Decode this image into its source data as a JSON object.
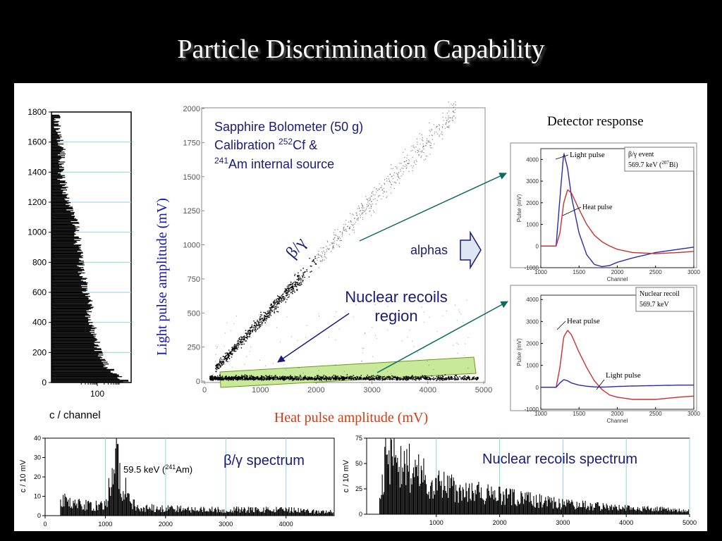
{
  "slide": {
    "title": "Particle Discrimination Capability"
  },
  "colors": {
    "background": "#000000",
    "panel": "#ffffff",
    "navy": "#1a1a7a",
    "axisRed": "#d43b0f",
    "arrow": "#0a6a60",
    "pulseBlue": "#2a2ab0",
    "pulseRed": "#c83030",
    "band": "#c8e89a"
  },
  "scatter": {
    "inner_title_line1": "Sapphire Bolometer (50 g)",
    "inner_title_line2_pre": "Calibration ",
    "inner_title_line2_sup": "252",
    "inner_title_line2_post": "Cf &",
    "inner_title_line3_sup": "241",
    "inner_title_line3_post": "Am internal source",
    "ylabel": "Light pulse amplitude (mV)",
    "xlabel": "Heat pulse amplitude (mV)",
    "beta_gamma_label": "β/γ",
    "alphas_label": "alphas",
    "nr_label_line1": "Nuclear recoils",
    "nr_label_line2": "region"
  },
  "left_hist": {
    "xlabel": "c / channel"
  },
  "bg_spectrum": {
    "ylabel": "c / 10 mV",
    "title": "β/γ spectrum",
    "annotation_pre": "59.5 keV (",
    "annotation_sup": "241",
    "annotation_post": "Am)"
  },
  "nr_spectrum": {
    "ylabel": "c / 10 mV",
    "title": "Nuclear recoils spectrum"
  },
  "detector_response": {
    "title": "Detector response",
    "top": {
      "light_label": "Light pulse",
      "heat_label": "Heat pulse",
      "box_line1": "β/γ event",
      "box_line2_pre": "569.7 keV (",
      "box_line2_sup": "207",
      "box_line2_post": "Bi)",
      "ylabel": "Pulse (mV)",
      "xlabel": "Channel"
    },
    "bottom": {
      "heat_label": "Heat pulse",
      "light_label": "Light pulse",
      "box_line1": "Nuclear recoil",
      "box_line2": "569.7 keV",
      "ylabel": "Pulse (mV)",
      "xlabel": "Channel"
    }
  },
  "chart_data": [
    {
      "type": "scatter",
      "name": "scatter",
      "xlim": [
        0,
        5000
      ],
      "ylim": [
        0,
        2000
      ],
      "xticks": [
        "0",
        "1000",
        "2000",
        "3000",
        "4000",
        "5000"
      ],
      "yticks": [
        "0",
        "250",
        "500",
        "750",
        "1000",
        "1250",
        "1500",
        "1750",
        "2000"
      ],
      "series": [
        {
          "name": "β/γ",
          "x_range": [
            200,
            4500
          ],
          "slope_y_per_x": 0.44
        },
        {
          "name": "nuclear recoils",
          "x_range": [
            100,
            4900
          ],
          "y_range": [
            0,
            80
          ]
        }
      ],
      "grid": false
    },
    {
      "type": "bar",
      "name": "left_hist",
      "orientation": "horizontal",
      "ylim": [
        0,
        1800
      ],
      "yticks": [
        "0",
        "200",
        "400",
        "600",
        "800",
        "1000",
        "1200",
        "1400",
        "1600",
        "1800"
      ],
      "xscale": "log",
      "xticks": [
        "100"
      ],
      "bins_y": [
        0,
        50,
        100,
        150,
        200,
        250,
        300,
        350,
        400,
        450,
        500,
        550,
        600,
        650,
        700,
        750,
        800,
        850,
        900,
        950,
        1000,
        1050,
        1100,
        1150,
        1200,
        1250,
        1300,
        1350,
        1400,
        1450,
        1500,
        1550,
        1600,
        1650,
        1700
      ],
      "counts": [
        2000,
        600,
        300,
        160,
        120,
        100,
        80,
        70,
        60,
        40,
        50,
        50,
        35,
        30,
        25,
        22,
        20,
        18,
        16,
        15,
        14,
        12,
        10,
        7,
        5,
        4,
        4,
        3,
        3,
        3,
        3,
        3,
        3,
        2,
        2
      ]
    },
    {
      "type": "bar",
      "name": "bg_spectrum",
      "xlim": [
        0,
        4800
      ],
      "ylim": [
        0,
        40
      ],
      "xticks": [
        "0",
        "1000",
        "2000",
        "3000",
        "4000"
      ],
      "yticks": [
        "0",
        "10",
        "20",
        "30",
        "40"
      ],
      "x": [
        250,
        500,
        750,
        1000,
        1190,
        1210,
        1500,
        2000,
        2500,
        3000,
        3500,
        4000,
        4500
      ],
      "values": [
        8,
        6,
        5,
        5,
        37,
        20,
        4,
        4,
        3,
        3,
        3,
        3,
        2
      ],
      "peak": {
        "x": 1200,
        "value": 37
      }
    },
    {
      "type": "bar",
      "name": "nr_spectrum",
      "xlim": [
        -100,
        5000
      ],
      "ylim": [
        0,
        75
      ],
      "xticks": [
        "1000",
        "2000",
        "3000",
        "4000",
        "5000"
      ],
      "yticks": [
        "0",
        "25",
        "50",
        "75"
      ],
      "x": [
        100,
        200,
        300,
        500,
        700,
        1000,
        1500,
        2000,
        2500,
        3000,
        3500,
        4000,
        4500,
        5000
      ],
      "values": [
        20,
        60,
        65,
        50,
        40,
        30,
        22,
        18,
        14,
        10,
        8,
        6,
        5,
        3
      ]
    },
    {
      "type": "line",
      "name": "pulse_beta",
      "xlabel": "Channel",
      "ylabel": "Pulse (mV)",
      "xlim": [
        1000,
        3000
      ],
      "ylim": [
        -1000,
        4500
      ],
      "xticks": [
        "1000",
        "1500",
        "2000",
        "2500",
        "3000"
      ],
      "yticks": [
        "-1000",
        "0",
        "1000",
        "2000",
        "3000",
        "4000"
      ],
      "series": [
        {
          "name": "Light pulse",
          "x": [
            1000,
            1200,
            1250,
            1300,
            1350,
            1400,
            1500,
            1600,
            1700,
            1800,
            1900,
            2000,
            2200,
            2500,
            2800,
            3000
          ],
          "y": [
            0,
            0,
            2200,
            4300,
            3600,
            2300,
            600,
            -400,
            -850,
            -950,
            -900,
            -750,
            -550,
            -300,
            -150,
            -50
          ]
        },
        {
          "name": "Heat pulse",
          "x": [
            1000,
            1200,
            1250,
            1300,
            1350,
            1400,
            1500,
            1600,
            1700,
            1800,
            1900,
            2000,
            2200,
            2500,
            2800,
            3000
          ],
          "y": [
            0,
            0,
            600,
            2000,
            2600,
            2450,
            1700,
            1000,
            500,
            200,
            0,
            -150,
            -300,
            -350,
            -300,
            -250
          ]
        }
      ]
    },
    {
      "type": "line",
      "name": "pulse_nr",
      "xlabel": "Channel",
      "ylabel": "Pulse (mV)",
      "xlim": [
        1000,
        3000
      ],
      "ylim": [
        -1000,
        4200
      ],
      "xticks": [
        "1000",
        "1500",
        "2000",
        "2500",
        "3000"
      ],
      "yticks": [
        "-1000",
        "0",
        "1000",
        "2000",
        "3000",
        "4000"
      ],
      "series": [
        {
          "name": "Heat pulse",
          "x": [
            1000,
            1200,
            1250,
            1300,
            1350,
            1400,
            1500,
            1600,
            1700,
            1800,
            1900,
            2000,
            2200,
            2500,
            2800,
            3000
          ],
          "y": [
            0,
            0,
            900,
            2300,
            2600,
            2400,
            1600,
            900,
            300,
            -100,
            -350,
            -450,
            -550,
            -550,
            -450,
            -400
          ]
        },
        {
          "name": "Light pulse",
          "x": [
            1000,
            1200,
            1250,
            1300,
            1350,
            1400,
            1500,
            1600,
            1700,
            1800,
            1900,
            2000,
            2200,
            2500,
            2800,
            3000
          ],
          "y": [
            0,
            0,
            200,
            350,
            300,
            200,
            100,
            50,
            20,
            10,
            20,
            40,
            60,
            80,
            100,
            100
          ]
        }
      ]
    }
  ]
}
